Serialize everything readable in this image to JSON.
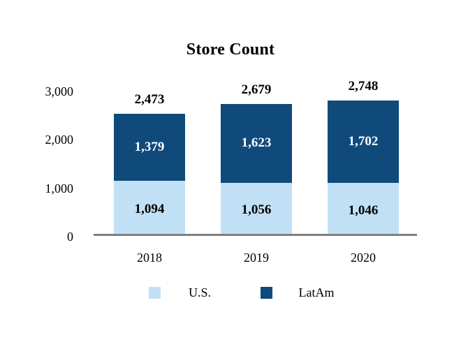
{
  "title": "Store Count",
  "colors": {
    "us": "#C2E0F5",
    "latam": "#0F4A7A",
    "axis_line": "#7F7F7F",
    "text": "#000000",
    "label_on_dark": "#FFFFFF"
  },
  "chart_data": {
    "type": "bar",
    "stacked": true,
    "title": "Store Count",
    "categories": [
      "2018",
      "2019",
      "2020"
    ],
    "series": [
      {
        "name": "U.S.",
        "values": [
          1094,
          1056,
          1046
        ],
        "labels": [
          "1,094",
          "1,056",
          "1,046"
        ]
      },
      {
        "name": "LatAm",
        "values": [
          1379,
          1623,
          1702
        ],
        "labels": [
          "1,379",
          "1,623",
          "1,702"
        ]
      }
    ],
    "totals": [
      2473,
      2679,
      2748
    ],
    "totals_formatted": [
      "2,473",
      "2,679",
      "2,748"
    ],
    "ylim": [
      0,
      3000
    ],
    "yticks": [
      0,
      1000,
      2000,
      3000
    ],
    "ytick_labels": [
      "0",
      "1,000",
      "2,000",
      "3,000"
    ],
    "grid": false,
    "legend_position": "bottom",
    "legend": [
      {
        "label": "U.S."
      },
      {
        "label": "LatAm"
      }
    ]
  }
}
